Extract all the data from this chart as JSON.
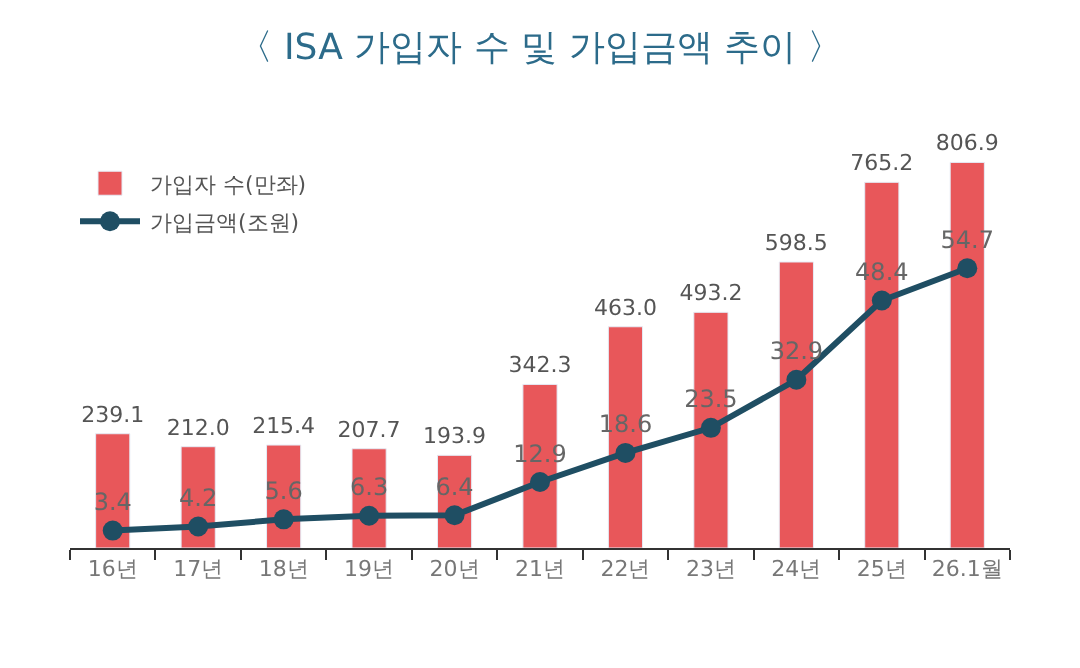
{
  "chart_data": {
    "type": "bar",
    "title": "〈 ISA 가입자 수 및 가입금액 추이 〉",
    "categories": [
      "16년",
      "17년",
      "18년",
      "19년",
      "20년",
      "21년",
      "22년",
      "23년",
      "24년",
      "25년",
      "26.1월"
    ],
    "series": [
      {
        "name": "가입자 수(만좌)",
        "color": "#e8575a",
        "values": [
          239.1,
          212.0,
          215.4,
          207.7,
          193.9,
          342.3,
          463.0,
          493.2,
          598.5,
          765.2,
          806.9
        ],
        "value_labels": [
          "239.1",
          "212.0",
          "215.4",
          "207.7",
          "193.9",
          "342.3",
          "463.0",
          "493.2",
          "598.5",
          "765.2",
          "806.9"
        ]
      },
      {
        "name": "가입금액(조원)",
        "type": "line",
        "axis": "y2",
        "color": "#1f4e63",
        "marker": "circle",
        "values": [
          3.4,
          4.2,
          5.6,
          6.3,
          6.4,
          12.9,
          18.6,
          23.5,
          32.9,
          48.4,
          54.7
        ]
      }
    ],
    "tick_labels": "x",
    "data_labels": true,
    "legend": "top left"
  }
}
